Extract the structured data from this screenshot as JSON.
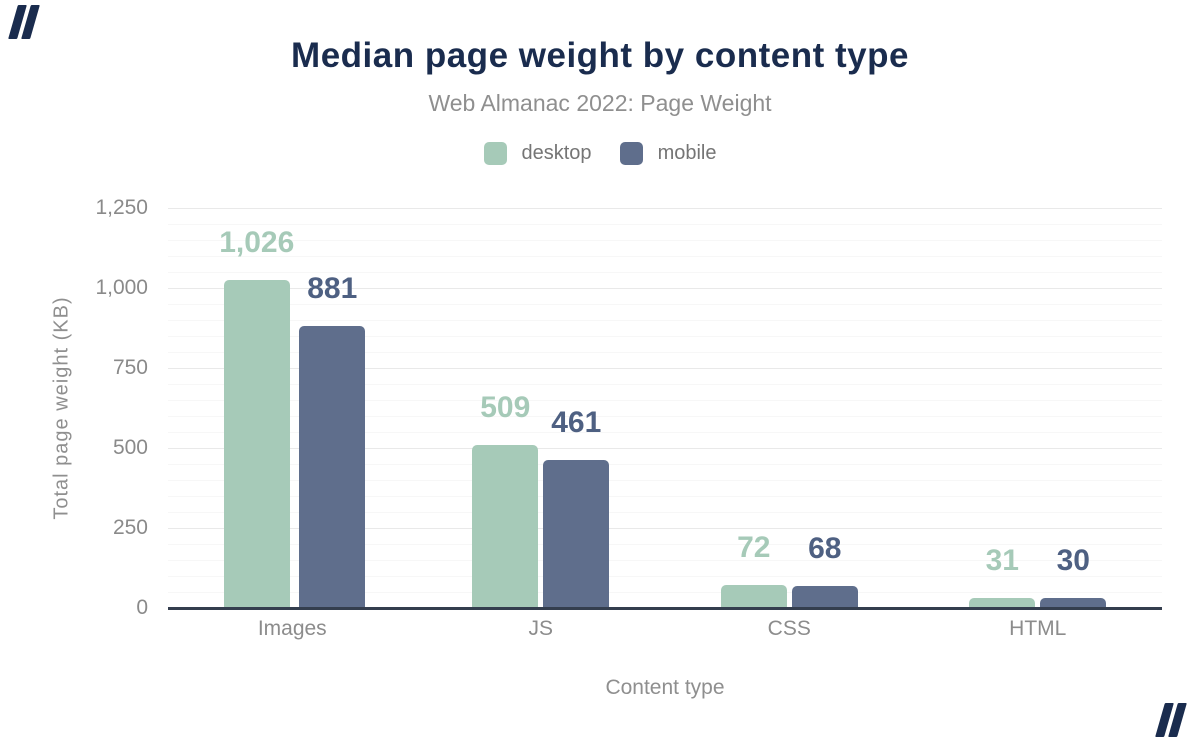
{
  "figure": {
    "title": "Median page weight by content type",
    "subtitle": "Web Almanac 2022: Page Weight"
  },
  "colors": {
    "title_navy": "#1a2c4e",
    "subtitle_gray": "#8f8f8f",
    "tick_gray": "#8a8a8a",
    "legend_text": "#757575",
    "axis_line": "#343e4e",
    "major_gridline": "#e9e9e9",
    "minor_gridline": "#f7f7f7",
    "desktop_green": "#a6cab8",
    "mobile_slate": "#5f6e8c",
    "mobile_label": "#4e6082"
  },
  "chart_data": {
    "type": "bar",
    "title": "Median page weight by content type",
    "subtitle": "Web Almanac 2022: Page Weight",
    "categories": [
      "Images",
      "JS",
      "CSS",
      "HTML"
    ],
    "series": [
      {
        "name": "desktop",
        "color": "#a6cab8",
        "label_color": "#a6cab8",
        "values": [
          1026,
          509,
          72,
          31
        ],
        "labels": [
          "1,026",
          "509",
          "72",
          "31"
        ]
      },
      {
        "name": "mobile",
        "color": "#5f6e8c",
        "label_color": "#4e6082",
        "values": [
          881,
          461,
          68,
          30
        ],
        "labels": [
          "881",
          "461",
          "68",
          "30"
        ]
      }
    ],
    "xlabel": "Content type",
    "ylabel": "Total page weight (KB)",
    "ylim": [
      0,
      1250
    ],
    "yticks": [
      {
        "value": 0,
        "label": "0"
      },
      {
        "value": 250,
        "label": "250"
      },
      {
        "value": 500,
        "label": "500"
      },
      {
        "value": 750,
        "label": "750"
      },
      {
        "value": 1000,
        "label": "1,000"
      },
      {
        "value": 1250,
        "label": "1,250"
      }
    ],
    "grid": {
      "major_step": 250,
      "minor_step": 50
    },
    "legend_position": "top"
  }
}
